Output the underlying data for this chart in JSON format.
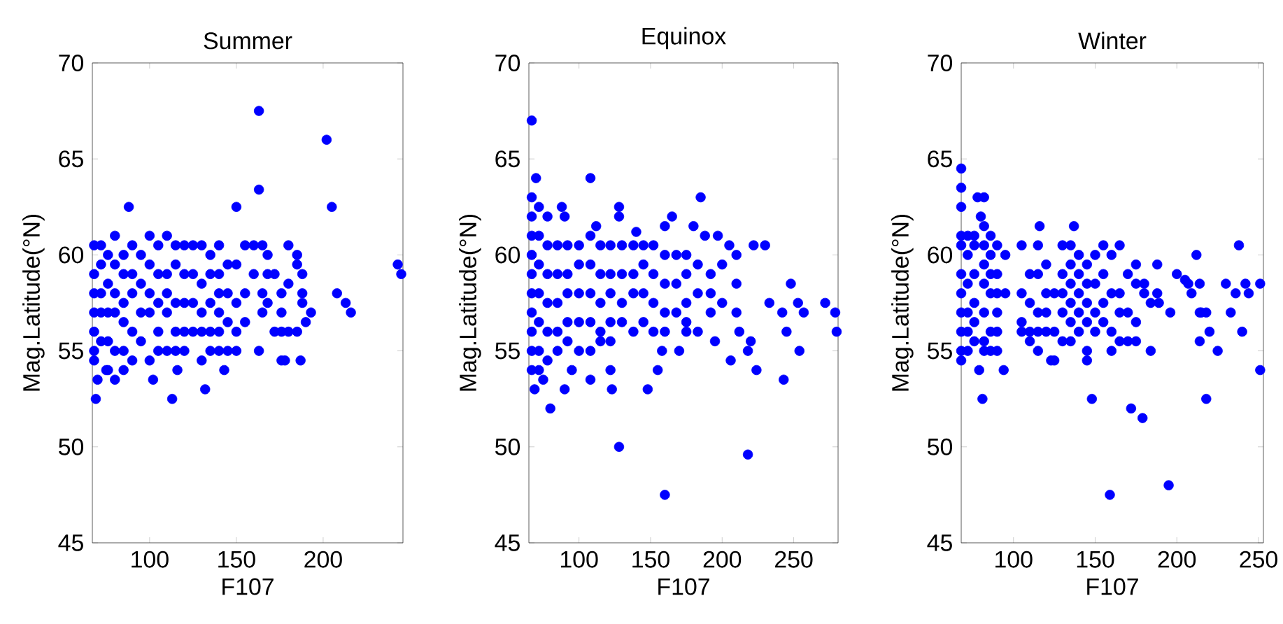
{
  "chart_data": [
    {
      "type": "scatter",
      "title": "Summer",
      "xlabel": "F107",
      "ylabel": "Mag.Latitude(°N)",
      "color": "#0000ff",
      "marker": "circle",
      "xlim": [
        67,
        246
      ],
      "ylim": [
        45,
        70
      ],
      "xticks": [
        100,
        150,
        200
      ],
      "yticks": [
        45,
        50,
        55,
        60,
        65,
        70
      ],
      "x": [
        163,
        202,
        163,
        205,
        150,
        88,
        243,
        245,
        208,
        213,
        216,
        193,
        190,
        187,
        178,
        176,
        163,
        143,
        132,
        113,
        69,
        80,
        102,
        116,
        85,
        70,
        75,
        68,
        68,
        68,
        68,
        68,
        68,
        68,
        72,
        72,
        72,
        72,
        72,
        76,
        76,
        76,
        76,
        76,
        80,
        80,
        80,
        80,
        80,
        85,
        85,
        85,
        85,
        85,
        90,
        90,
        90,
        90,
        90,
        95,
        95,
        95,
        95,
        100,
        100,
        100,
        100,
        100,
        105,
        105,
        105,
        105,
        105,
        110,
        110,
        110,
        110,
        110,
        115,
        115,
        115,
        115,
        115,
        120,
        120,
        120,
        120,
        120,
        125,
        125,
        125,
        125,
        130,
        130,
        130,
        130,
        130,
        135,
        135,
        135,
        135,
        135,
        140,
        140,
        140,
        140,
        140,
        140,
        145,
        145,
        145,
        145,
        150,
        150,
        150,
        150,
        155,
        155,
        155,
        160,
        160,
        165,
        165,
        165,
        168,
        168,
        168,
        172,
        172,
        176,
        176,
        176,
        180,
        180,
        180,
        185,
        185,
        185,
        188,
        188,
        188
      ],
      "values": [
        67.5,
        66,
        63.4,
        62.5,
        62.5,
        62.5,
        59.5,
        59,
        58,
        57.5,
        57,
        57,
        56.5,
        54.5,
        54.5,
        54.5,
        55,
        54,
        53,
        52.5,
        52.5,
        53.5,
        53.5,
        54,
        54,
        53.5,
        54,
        60.5,
        59,
        58,
        57,
        56,
        55,
        54.5,
        60.5,
        59.5,
        58,
        57,
        55.5,
        60,
        58.5,
        57,
        55.5,
        54,
        61,
        59.5,
        58,
        57,
        55,
        60,
        59,
        57.5,
        56.5,
        55,
        60.5,
        59,
        58,
        56,
        54.5,
        60,
        58.5,
        57,
        55.5,
        61,
        59.5,
        58,
        57,
        54.5,
        60.5,
        59,
        57.5,
        56,
        55,
        61,
        59,
        58,
        57,
        55,
        60.5,
        59.5,
        57.5,
        56,
        55,
        60.5,
        59,
        57.5,
        56,
        55,
        60.5,
        59,
        57.5,
        56,
        60.5,
        58.5,
        57,
        56,
        54.5,
        60,
        59,
        57.5,
        56,
        55,
        60.5,
        59,
        58,
        57,
        56,
        55,
        59.5,
        58,
        56.5,
        55,
        59.5,
        57.5,
        56,
        55,
        60.5,
        58,
        56.5,
        60.5,
        59,
        60.5,
        58,
        57,
        60,
        59,
        57.5,
        59,
        56,
        58,
        57,
        56,
        60.5,
        58.5,
        56,
        60,
        59.5,
        56,
        58,
        57.5,
        59
      ]
    },
    {
      "type": "scatter",
      "title": "Equinox",
      "xlabel": "F107",
      "ylabel": "Mag.Latitude(°N)",
      "color": "#0000ff",
      "marker": "circle",
      "xlim": [
        65,
        281
      ],
      "ylim": [
        45,
        70
      ],
      "xticks": [
        100,
        150,
        200,
        250
      ],
      "yticks": [
        45,
        50,
        55,
        60,
        65,
        70
      ],
      "x": [
        67,
        70,
        108,
        185,
        128,
        128,
        88,
        90,
        112,
        140,
        165,
        160,
        180,
        188,
        197,
        205,
        210,
        222,
        230,
        233,
        242,
        248,
        253,
        257,
        272,
        279,
        280,
        245,
        254,
        243,
        224,
        218,
        220,
        212,
        206,
        195,
        170,
        158,
        155,
        148,
        123,
        122,
        108,
        95,
        90,
        80,
        75,
        69,
        128,
        218,
        160,
        67,
        67,
        67,
        67,
        67,
        67,
        67,
        67,
        67,
        67,
        72,
        72,
        72,
        72,
        72,
        72,
        72,
        78,
        78,
        78,
        78,
        78,
        78,
        85,
        85,
        85,
        85,
        85,
        92,
        92,
        92,
        92,
        92,
        100,
        100,
        100,
        100,
        100,
        108,
        108,
        108,
        108,
        108,
        115,
        115,
        115,
        115,
        115,
        122,
        122,
        122,
        122,
        122,
        130,
        130,
        130,
        130,
        138,
        138,
        138,
        138,
        145,
        145,
        145,
        145,
        152,
        152,
        152,
        152,
        160,
        160,
        160,
        160,
        168,
        168,
        168,
        175,
        175,
        175,
        175,
        175,
        183,
        183,
        183,
        192,
        192,
        192,
        200,
        200,
        210,
        210
      ],
      "values": [
        67,
        64,
        64,
        63,
        62.5,
        62,
        62.5,
        62,
        61.5,
        61.2,
        62,
        61.5,
        61.5,
        61,
        61,
        60.5,
        60,
        60.5,
        60.5,
        57.5,
        57,
        58.5,
        57.5,
        57,
        57.5,
        57,
        56,
        56,
        55,
        53.5,
        54,
        55,
        55.5,
        56,
        54.5,
        55.5,
        55,
        55,
        54,
        53,
        53,
        54,
        53.5,
        54,
        53,
        52,
        53.5,
        53,
        50,
        49.6,
        47.5,
        63,
        62,
        61,
        60,
        59,
        58,
        57,
        56,
        55,
        54,
        62.5,
        61,
        59.5,
        58,
        56.5,
        55,
        54,
        62,
        60.5,
        59,
        57.5,
        56,
        54.5,
        60.5,
        59,
        57.5,
        56,
        55,
        60.5,
        59,
        58,
        56.5,
        55.5,
        60.5,
        59.5,
        58,
        56.5,
        55,
        61,
        59.5,
        58,
        56.5,
        55,
        60.5,
        59,
        57.5,
        56,
        55.5,
        60.5,
        59,
        58,
        56.5,
        55.5,
        60.5,
        59,
        57.5,
        56.5,
        60.5,
        59,
        58,
        56,
        60.5,
        59.5,
        58,
        56.5,
        60.5,
        59,
        57.5,
        56,
        60,
        58.5,
        57,
        56,
        60,
        58.5,
        57,
        60,
        59,
        57.5,
        56.5,
        56,
        59.5,
        58,
        56,
        59,
        58,
        57,
        59.5,
        57.5,
        58.5,
        57
      ]
    },
    {
      "type": "scatter",
      "title": "Winter",
      "xlabel": "F107",
      "ylabel": "Mag.Latitude(°N)",
      "color": "#0000ff",
      "marker": "circle",
      "xlim": [
        68,
        253
      ],
      "ylim": [
        45,
        70
      ],
      "xticks": [
        100,
        150,
        200,
        250
      ],
      "yticks": [
        45,
        50,
        55,
        60,
        65,
        70
      ],
      "x": [
        68,
        68,
        68,
        78,
        82,
        80,
        116,
        137,
        159,
        195,
        172,
        179,
        148,
        81,
        79,
        94,
        123,
        145,
        218,
        188,
        188,
        189,
        196,
        200,
        205,
        207,
        209,
        212,
        214,
        214,
        215,
        218,
        214,
        220,
        225,
        230,
        233,
        236,
        238,
        240,
        242,
        244,
        251,
        251,
        68,
        68,
        68,
        68,
        68,
        68,
        68,
        68,
        72,
        72,
        72,
        72,
        72,
        72,
        76,
        76,
        76,
        76,
        76,
        76,
        82,
        82,
        82,
        82,
        82,
        82,
        82,
        86,
        86,
        86,
        86,
        86,
        86,
        90,
        90,
        90,
        90,
        90,
        90,
        95,
        95,
        105,
        105,
        105,
        105,
        110,
        110,
        110,
        110,
        115,
        115,
        115,
        115,
        115,
        120,
        120,
        120,
        120,
        125,
        125,
        125,
        130,
        130,
        130,
        130,
        130,
        135,
        135,
        135,
        135,
        135,
        135,
        140,
        140,
        140,
        140,
        140,
        145,
        145,
        145,
        145,
        145,
        150,
        150,
        150,
        150,
        155,
        155,
        155,
        155,
        160,
        160,
        160,
        160,
        165,
        165,
        165,
        165,
        170,
        170,
        170,
        175,
        175,
        175,
        175,
        180,
        180,
        184,
        184
      ],
      "values": [
        64.5,
        63.5,
        62.5,
        63,
        63,
        62,
        61.5,
        61.5,
        47.5,
        48,
        52,
        51.5,
        52.5,
        52.5,
        54,
        54,
        54.5,
        54.5,
        52.5,
        59.5,
        58,
        57.5,
        57,
        59,
        58.7,
        58.5,
        58,
        60,
        58.5,
        57,
        57,
        57,
        55.5,
        56,
        55,
        58.5,
        57,
        58,
        60.5,
        56,
        58.5,
        58,
        58.5,
        54,
        61,
        60.5,
        59,
        58,
        57,
        56,
        55,
        54.5,
        61,
        60,
        58.5,
        57,
        56,
        55,
        61,
        60.5,
        59,
        57.5,
        56.5,
        55.5,
        61.5,
        60.5,
        59.5,
        58.5,
        57,
        55.5,
        55,
        61,
        60,
        59,
        58,
        56,
        55,
        60.5,
        59,
        58,
        57,
        56,
        55,
        60,
        58,
        60.5,
        58,
        56.5,
        56,
        59,
        57.5,
        56,
        55.5,
        60.5,
        59,
        57,
        56,
        55,
        59.5,
        58,
        57,
        56,
        58,
        56,
        54.5,
        60.5,
        59,
        58,
        57,
        55.5,
        60.5,
        59.5,
        58.5,
        57.5,
        56.5,
        55.5,
        60,
        59,
        58,
        57,
        56,
        59.5,
        58.5,
        57.5,
        56.5,
        55,
        60,
        58.5,
        57,
        56,
        60.5,
        59,
        57.5,
        56.5,
        60,
        58,
        56,
        55,
        60.5,
        58,
        57,
        55.5,
        59,
        57,
        55.5,
        59.5,
        58.5,
        56.5,
        55.5,
        58.5,
        58,
        57.5,
        55
      ]
    }
  ]
}
